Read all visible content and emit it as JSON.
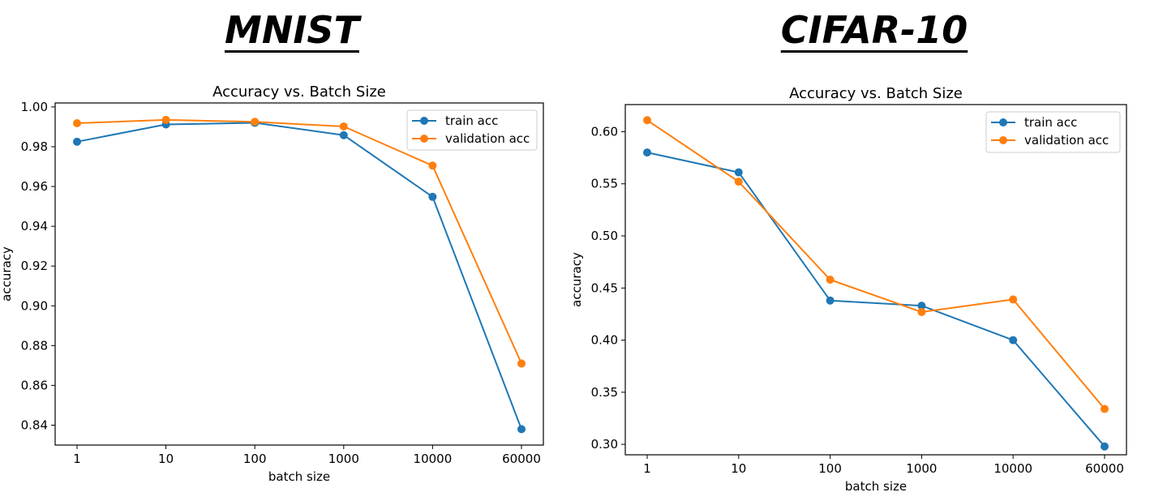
{
  "headings": {
    "left": "MNIST",
    "right": "CIFAR-10"
  },
  "colors": {
    "train": "#1f77b4",
    "validation": "#ff7f0e"
  },
  "chart_data": [
    {
      "type": "line",
      "title": "Accuracy vs. Batch Size",
      "xlabel": "batch size",
      "ylabel": "accuracy",
      "categories": [
        "1",
        "10",
        "100",
        "1000",
        "10000",
        "60000"
      ],
      "ylim": [
        0.83,
        1.002
      ],
      "yticks": [
        0.84,
        0.86,
        0.88,
        0.9,
        0.92,
        0.94,
        0.96,
        0.98,
        1.0
      ],
      "ytick_labels": [
        "0.84",
        "0.86",
        "0.88",
        "0.90",
        "0.92",
        "0.94",
        "0.96",
        "0.98",
        "1.00"
      ],
      "grid": false,
      "legend_position": "top-right",
      "series": [
        {
          "name": "train acc",
          "color": "#1f77b4",
          "values": [
            0.9825,
            0.9912,
            0.992,
            0.9858,
            0.9548,
            0.838
          ]
        },
        {
          "name": "validation acc",
          "color": "#ff7f0e",
          "values": [
            0.9918,
            0.9935,
            0.9925,
            0.9902,
            0.9705,
            0.871
          ]
        }
      ]
    },
    {
      "type": "line",
      "title": "Accuracy vs. Batch Size",
      "xlabel": "batch size",
      "ylabel": "accuracy",
      "categories": [
        "1",
        "10",
        "100",
        "1000",
        "10000",
        "60000"
      ],
      "ylim": [
        0.29,
        0.626
      ],
      "yticks": [
        0.3,
        0.35,
        0.4,
        0.45,
        0.5,
        0.55,
        0.6
      ],
      "ytick_labels": [
        "0.30",
        "0.35",
        "0.40",
        "0.45",
        "0.50",
        "0.55",
        "0.60"
      ],
      "grid": false,
      "legend_position": "top-right",
      "series": [
        {
          "name": "train acc",
          "color": "#1f77b4",
          "values": [
            0.58,
            0.561,
            0.438,
            0.433,
            0.4,
            0.298
          ]
        },
        {
          "name": "validation acc",
          "color": "#ff7f0e",
          "values": [
            0.611,
            0.552,
            0.458,
            0.427,
            0.439,
            0.334
          ]
        }
      ]
    }
  ]
}
